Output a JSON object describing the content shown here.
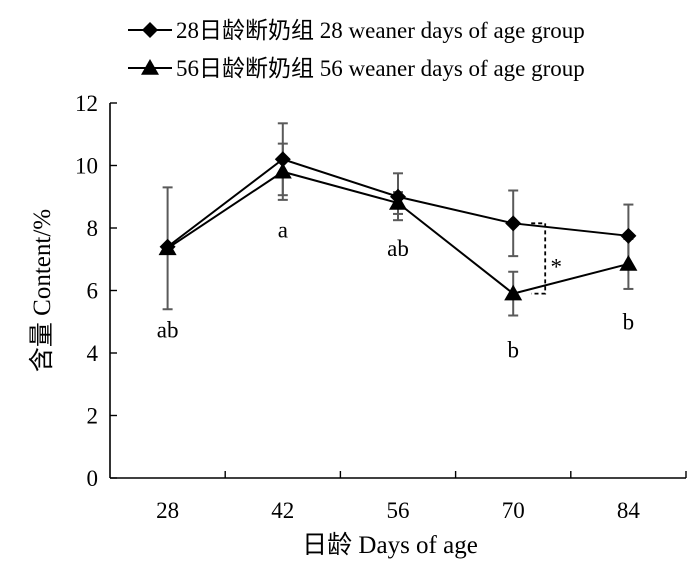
{
  "chart_data": {
    "type": "line",
    "title": "",
    "xlabel": "日龄  Days of age",
    "ylabel": "含量  Content/%",
    "categories": [
      "28",
      "42",
      "56",
      "70",
      "84"
    ],
    "ylim": [
      0,
      12
    ],
    "yticks": [
      "0",
      "2",
      "4",
      "6",
      "8",
      "10",
      "12"
    ],
    "grid": false,
    "legend_position": "top",
    "series": [
      {
        "name": "28日龄断奶组 28 weaner days of age group",
        "marker": "diamond",
        "values": [
          7.4,
          10.2,
          9.0,
          8.15,
          7.75
        ],
        "error": [
          null,
          1.15,
          0.75,
          1.05,
          1.0
        ]
      },
      {
        "name": "56日龄断奶组 56 weaner days of age group",
        "marker": "triangle",
        "values": [
          7.35,
          9.8,
          8.8,
          5.9,
          6.85
        ],
        "error": [
          1.95,
          0.9,
          0.35,
          0.7,
          0.8
        ]
      }
    ],
    "annotations": [
      {
        "category": "28",
        "text": "ab",
        "y": 4.5
      },
      {
        "category": "42",
        "text": "a",
        "y": 7.7
      },
      {
        "category": "56",
        "text": "ab",
        "y": 7.1
      },
      {
        "category": "70",
        "text": "b",
        "y": 3.85
      },
      {
        "category": "84",
        "text": "b",
        "y": 4.75
      }
    ],
    "significance": {
      "category": "70",
      "text": "*",
      "y_top": 8.15,
      "y_bottom": 5.9
    }
  }
}
